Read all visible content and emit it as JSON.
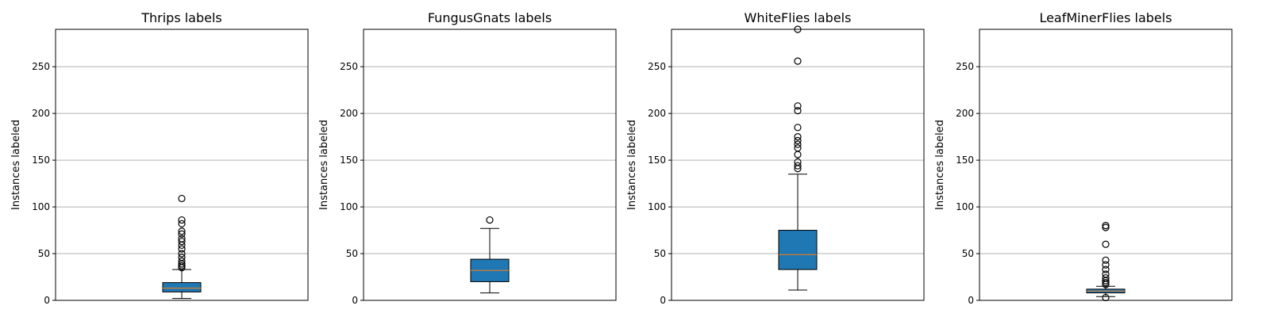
{
  "chart_data": [
    {
      "type": "box",
      "title": "Thrips labels",
      "ylabel": "Instances labeled",
      "ylim": [
        0,
        290
      ],
      "yticks": [
        0,
        50,
        100,
        150,
        200,
        250
      ],
      "grid": "y",
      "box": {
        "whisker_low": 2,
        "q1": 9,
        "median": 13,
        "q3": 19,
        "whisker_high": 33
      },
      "outliers": [
        35,
        37,
        39,
        42,
        46,
        50,
        55,
        59,
        63,
        66,
        71,
        74,
        82,
        86,
        109
      ],
      "colors": {
        "box": "#1f77b4",
        "median": "#ff7f0e"
      }
    },
    {
      "type": "box",
      "title": "FungusGnats labels",
      "ylabel": "Instances labeled",
      "ylim": [
        0,
        290
      ],
      "yticks": [
        0,
        50,
        100,
        150,
        200,
        250
      ],
      "grid": "y",
      "box": {
        "whisker_low": 8,
        "q1": 20,
        "median": 32,
        "q3": 44,
        "whisker_high": 77
      },
      "outliers": [
        86
      ],
      "colors": {
        "box": "#1f77b4",
        "median": "#ff7f0e"
      }
    },
    {
      "type": "box",
      "title": "WhiteFlies labels",
      "ylabel": "Instances labeled",
      "ylim": [
        0,
        290
      ],
      "yticks": [
        0,
        50,
        100,
        150,
        200,
        250
      ],
      "grid": "y",
      "box": {
        "whisker_low": 11,
        "q1": 33,
        "median": 49,
        "q3": 75,
        "whisker_high": 135
      },
      "outliers": [
        141,
        144,
        148,
        156,
        163,
        167,
        171,
        175,
        185,
        203,
        208,
        256,
        290
      ],
      "colors": {
        "box": "#1f77b4",
        "median": "#ff7f0e"
      }
    },
    {
      "type": "box",
      "title": "LeafMinerFlies labels",
      "ylabel": "Instances labeled",
      "ylim": [
        0,
        290
      ],
      "yticks": [
        0,
        50,
        100,
        150,
        200,
        250
      ],
      "grid": "y",
      "box": {
        "whisker_low": 4,
        "q1": 8,
        "median": 10,
        "q3": 12,
        "whisker_high": 15
      },
      "outliers": [
        3,
        17,
        19,
        21,
        24,
        28,
        33,
        38,
        43,
        60,
        78,
        80
      ],
      "colors": {
        "box": "#1f77b4",
        "median": "#ff7f0e"
      }
    }
  ]
}
